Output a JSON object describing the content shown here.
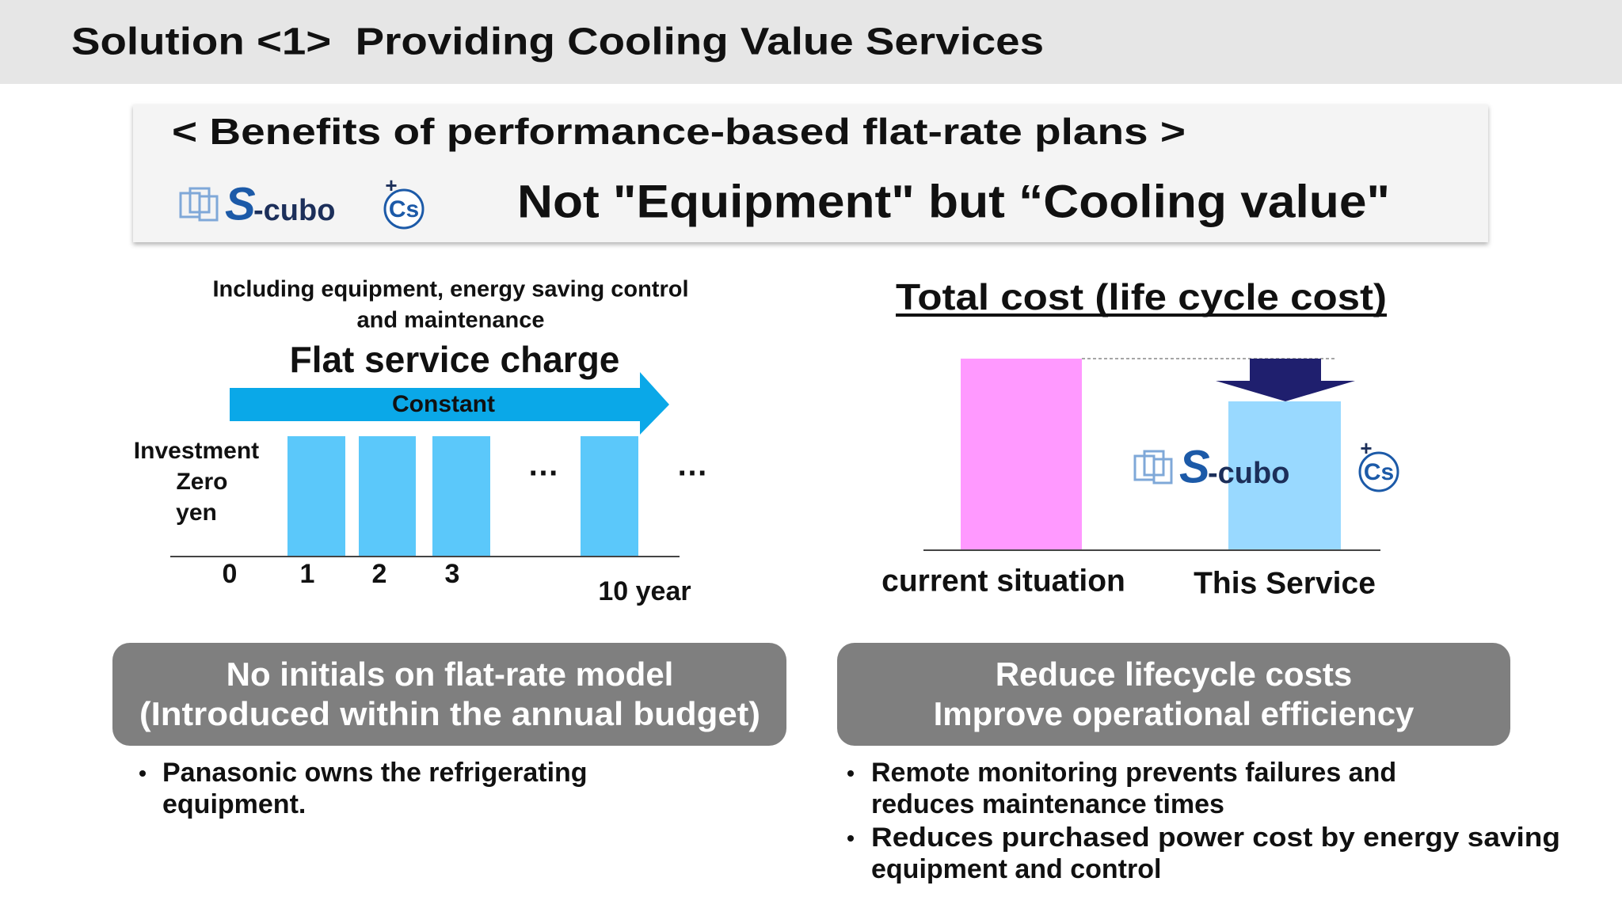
{
  "header": {
    "title": "Solution <1>  Providing Cooling Value Services"
  },
  "banner": {
    "heading": "< Benefits of performance-based flat-rate plans >",
    "logo": {
      "main": "S",
      "suffix": "-cubo",
      "badge": "Cs",
      "plus": "+"
    },
    "slogan": "Not \"Equipment\" but “Cooling value\""
  },
  "left_diagram": {
    "caption": [
      "Including equipment, energy saving control",
      "and maintenance"
    ],
    "title": "Flat service charge",
    "arrow_label": "Constant",
    "investment_label": [
      "Investment",
      "Zero",
      "yen"
    ],
    "ellipsis": "…",
    "x_labels": [
      "0",
      "1",
      "2",
      "3"
    ],
    "end_label": "10 year"
  },
  "right_diagram": {
    "title": "Total cost (life cycle cost)",
    "labels": [
      "current situation",
      "This Service"
    ]
  },
  "panels": [
    {
      "heading": [
        "No initials on flat-rate model",
        "(Introduced within the annual budget)"
      ],
      "bullets": [
        [
          "Panasonic owns the refrigerating",
          "equipment."
        ]
      ]
    },
    {
      "heading": [
        "Reduce lifecycle costs",
        "Improve operational efficiency"
      ],
      "bullets": [
        [
          "Remote monitoring prevents failures and",
          "reduces maintenance times"
        ],
        [
          "Reduces purchased power cost by energy saving",
          "equipment and control"
        ]
      ]
    }
  ]
}
